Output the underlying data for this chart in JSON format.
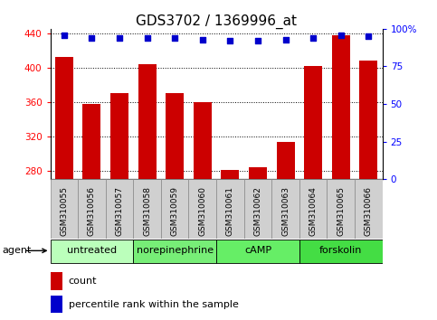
{
  "title": "GDS3702 / 1369996_at",
  "samples": [
    "GSM310055",
    "GSM310056",
    "GSM310057",
    "GSM310058",
    "GSM310059",
    "GSM310060",
    "GSM310061",
    "GSM310062",
    "GSM310063",
    "GSM310064",
    "GSM310065",
    "GSM310066"
  ],
  "counts": [
    412,
    358,
    370,
    404,
    370,
    360,
    281,
    284,
    313,
    402,
    438,
    408
  ],
  "percentiles": [
    96,
    94,
    94,
    94,
    94,
    93,
    92,
    92,
    93,
    94,
    96,
    95
  ],
  "ylim_left": [
    270,
    445
  ],
  "ylim_right": [
    0,
    100
  ],
  "yticks_left": [
    280,
    320,
    360,
    400,
    440
  ],
  "yticks_right": [
    0,
    25,
    50,
    75,
    100
  ],
  "right_tick_labels": [
    "0",
    "25",
    "50",
    "75",
    "100%"
  ],
  "bar_color": "#cc0000",
  "dot_color": "#0000cc",
  "bar_width": 0.65,
  "groups": [
    {
      "label": "untreated",
      "start": 0,
      "end": 3
    },
    {
      "label": "norepinephrine",
      "start": 3,
      "end": 6
    },
    {
      "label": "cAMP",
      "start": 6,
      "end": 9
    },
    {
      "label": "forskolin",
      "start": 9,
      "end": 12
    }
  ],
  "group_colors": [
    "#bbffbb",
    "#77ee77",
    "#66ee66",
    "#44dd44"
  ],
  "agent_label": "agent",
  "legend_count_label": "count",
  "legend_percentile_label": "percentile rank within the sample",
  "bar_color_legend": "#cc0000",
  "dot_color_legend": "#0000cc",
  "gray_cell_color": "#d0d0d0",
  "gray_border_color": "#888888",
  "plot_bg": "#ffffff",
  "title_fontsize": 11,
  "tick_fontsize": 7.5,
  "group_fontsize": 8,
  "legend_fontsize": 8
}
